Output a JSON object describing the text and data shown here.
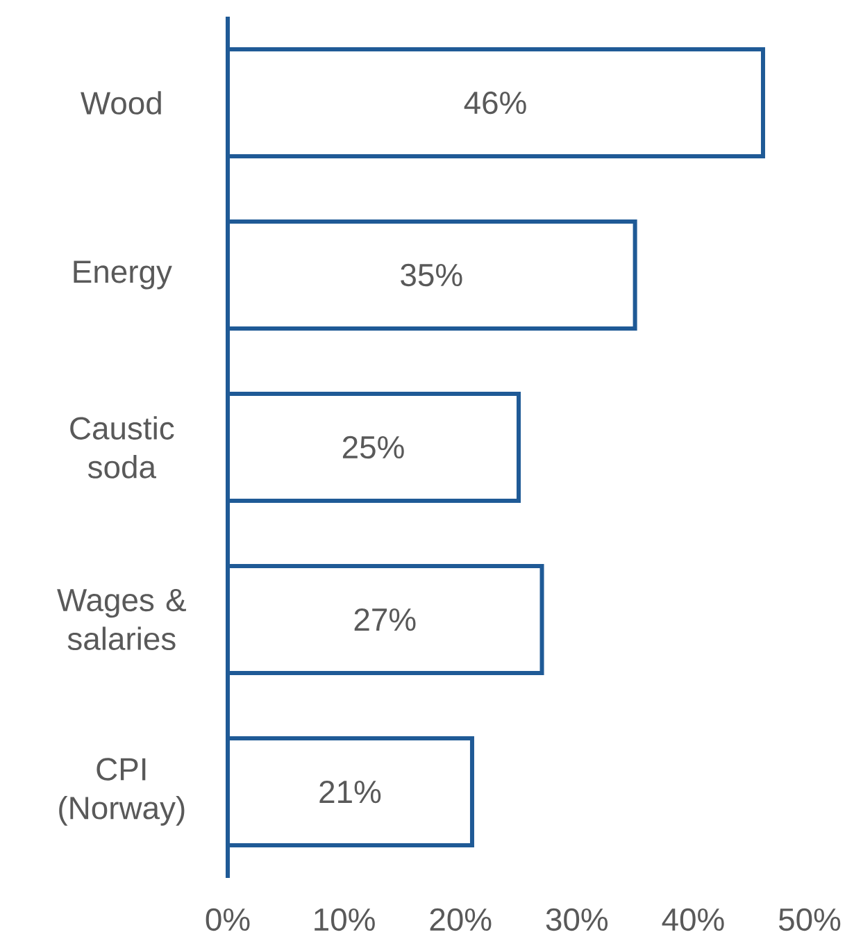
{
  "chart_data": {
    "type": "bar",
    "orientation": "horizontal",
    "categories": [
      "Wood",
      "Energy",
      "Caustic soda",
      "Wages & salaries",
      "CPI (Norway)"
    ],
    "values": [
      46,
      35,
      25,
      27,
      21
    ],
    "value_labels": [
      "46%",
      "35%",
      "25%",
      "27%",
      "21%"
    ],
    "color": "#1f5a96",
    "xlim": [
      0,
      50
    ],
    "xticks": [
      {
        "value": 0,
        "label": "0%"
      },
      {
        "value": 10,
        "label": "10%"
      },
      {
        "value": 20,
        "label": "20%"
      },
      {
        "value": 30,
        "label": "30%"
      },
      {
        "value": 40,
        "label": "40%"
      },
      {
        "value": 50,
        "label": "50%"
      }
    ]
  }
}
